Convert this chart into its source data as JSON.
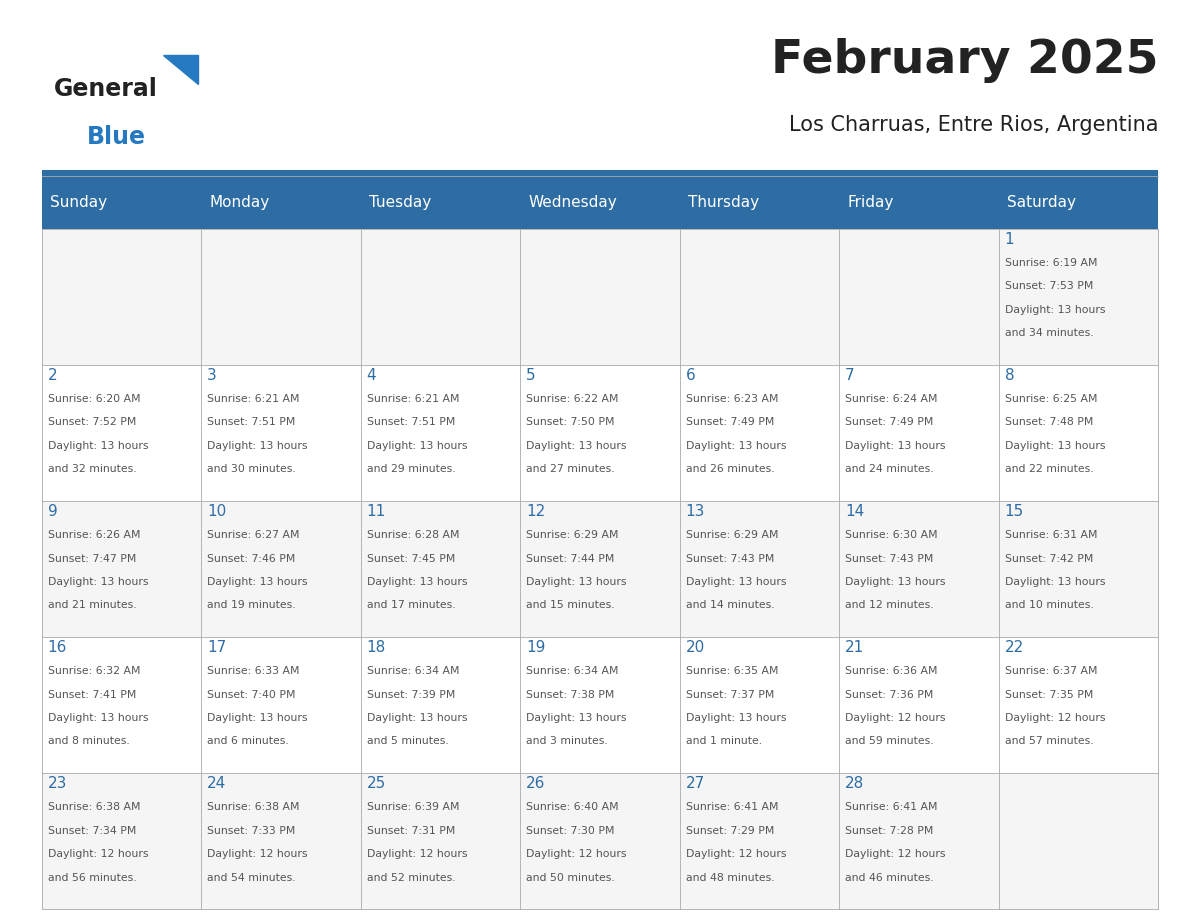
{
  "title": "February 2025",
  "subtitle": "Los Charruas, Entre Rios, Argentina",
  "header_bg": "#2E6DA4",
  "header_text": "#FFFFFF",
  "day_names": [
    "Sunday",
    "Monday",
    "Tuesday",
    "Wednesday",
    "Thursday",
    "Friday",
    "Saturday"
  ],
  "day_num_color": "#2E6DA4",
  "text_color": "#555555",
  "title_color": "#222222",
  "logo_general_color": "#222222",
  "logo_blue_color": "#2479C0",
  "grid_color": "#AAAAAA",
  "row_bg_even": "#F5F5F5",
  "row_bg_odd": "#FFFFFF",
  "weeks": [
    [
      {
        "day": null,
        "info": ""
      },
      {
        "day": null,
        "info": ""
      },
      {
        "day": null,
        "info": ""
      },
      {
        "day": null,
        "info": ""
      },
      {
        "day": null,
        "info": ""
      },
      {
        "day": null,
        "info": ""
      },
      {
        "day": 1,
        "info": "Sunrise: 6:19 AM\nSunset: 7:53 PM\nDaylight: 13 hours\nand 34 minutes."
      }
    ],
    [
      {
        "day": 2,
        "info": "Sunrise: 6:20 AM\nSunset: 7:52 PM\nDaylight: 13 hours\nand 32 minutes."
      },
      {
        "day": 3,
        "info": "Sunrise: 6:21 AM\nSunset: 7:51 PM\nDaylight: 13 hours\nand 30 minutes."
      },
      {
        "day": 4,
        "info": "Sunrise: 6:21 AM\nSunset: 7:51 PM\nDaylight: 13 hours\nand 29 minutes."
      },
      {
        "day": 5,
        "info": "Sunrise: 6:22 AM\nSunset: 7:50 PM\nDaylight: 13 hours\nand 27 minutes."
      },
      {
        "day": 6,
        "info": "Sunrise: 6:23 AM\nSunset: 7:49 PM\nDaylight: 13 hours\nand 26 minutes."
      },
      {
        "day": 7,
        "info": "Sunrise: 6:24 AM\nSunset: 7:49 PM\nDaylight: 13 hours\nand 24 minutes."
      },
      {
        "day": 8,
        "info": "Sunrise: 6:25 AM\nSunset: 7:48 PM\nDaylight: 13 hours\nand 22 minutes."
      }
    ],
    [
      {
        "day": 9,
        "info": "Sunrise: 6:26 AM\nSunset: 7:47 PM\nDaylight: 13 hours\nand 21 minutes."
      },
      {
        "day": 10,
        "info": "Sunrise: 6:27 AM\nSunset: 7:46 PM\nDaylight: 13 hours\nand 19 minutes."
      },
      {
        "day": 11,
        "info": "Sunrise: 6:28 AM\nSunset: 7:45 PM\nDaylight: 13 hours\nand 17 minutes."
      },
      {
        "day": 12,
        "info": "Sunrise: 6:29 AM\nSunset: 7:44 PM\nDaylight: 13 hours\nand 15 minutes."
      },
      {
        "day": 13,
        "info": "Sunrise: 6:29 AM\nSunset: 7:43 PM\nDaylight: 13 hours\nand 14 minutes."
      },
      {
        "day": 14,
        "info": "Sunrise: 6:30 AM\nSunset: 7:43 PM\nDaylight: 13 hours\nand 12 minutes."
      },
      {
        "day": 15,
        "info": "Sunrise: 6:31 AM\nSunset: 7:42 PM\nDaylight: 13 hours\nand 10 minutes."
      }
    ],
    [
      {
        "day": 16,
        "info": "Sunrise: 6:32 AM\nSunset: 7:41 PM\nDaylight: 13 hours\nand 8 minutes."
      },
      {
        "day": 17,
        "info": "Sunrise: 6:33 AM\nSunset: 7:40 PM\nDaylight: 13 hours\nand 6 minutes."
      },
      {
        "day": 18,
        "info": "Sunrise: 6:34 AM\nSunset: 7:39 PM\nDaylight: 13 hours\nand 5 minutes."
      },
      {
        "day": 19,
        "info": "Sunrise: 6:34 AM\nSunset: 7:38 PM\nDaylight: 13 hours\nand 3 minutes."
      },
      {
        "day": 20,
        "info": "Sunrise: 6:35 AM\nSunset: 7:37 PM\nDaylight: 13 hours\nand 1 minute."
      },
      {
        "day": 21,
        "info": "Sunrise: 6:36 AM\nSunset: 7:36 PM\nDaylight: 12 hours\nand 59 minutes."
      },
      {
        "day": 22,
        "info": "Sunrise: 6:37 AM\nSunset: 7:35 PM\nDaylight: 12 hours\nand 57 minutes."
      }
    ],
    [
      {
        "day": 23,
        "info": "Sunrise: 6:38 AM\nSunset: 7:34 PM\nDaylight: 12 hours\nand 56 minutes."
      },
      {
        "day": 24,
        "info": "Sunrise: 6:38 AM\nSunset: 7:33 PM\nDaylight: 12 hours\nand 54 minutes."
      },
      {
        "day": 25,
        "info": "Sunrise: 6:39 AM\nSunset: 7:31 PM\nDaylight: 12 hours\nand 52 minutes."
      },
      {
        "day": 26,
        "info": "Sunrise: 6:40 AM\nSunset: 7:30 PM\nDaylight: 12 hours\nand 50 minutes."
      },
      {
        "day": 27,
        "info": "Sunrise: 6:41 AM\nSunset: 7:29 PM\nDaylight: 12 hours\nand 48 minutes."
      },
      {
        "day": 28,
        "info": "Sunrise: 6:41 AM\nSunset: 7:28 PM\nDaylight: 12 hours\nand 46 minutes."
      },
      {
        "day": null,
        "info": ""
      }
    ]
  ]
}
